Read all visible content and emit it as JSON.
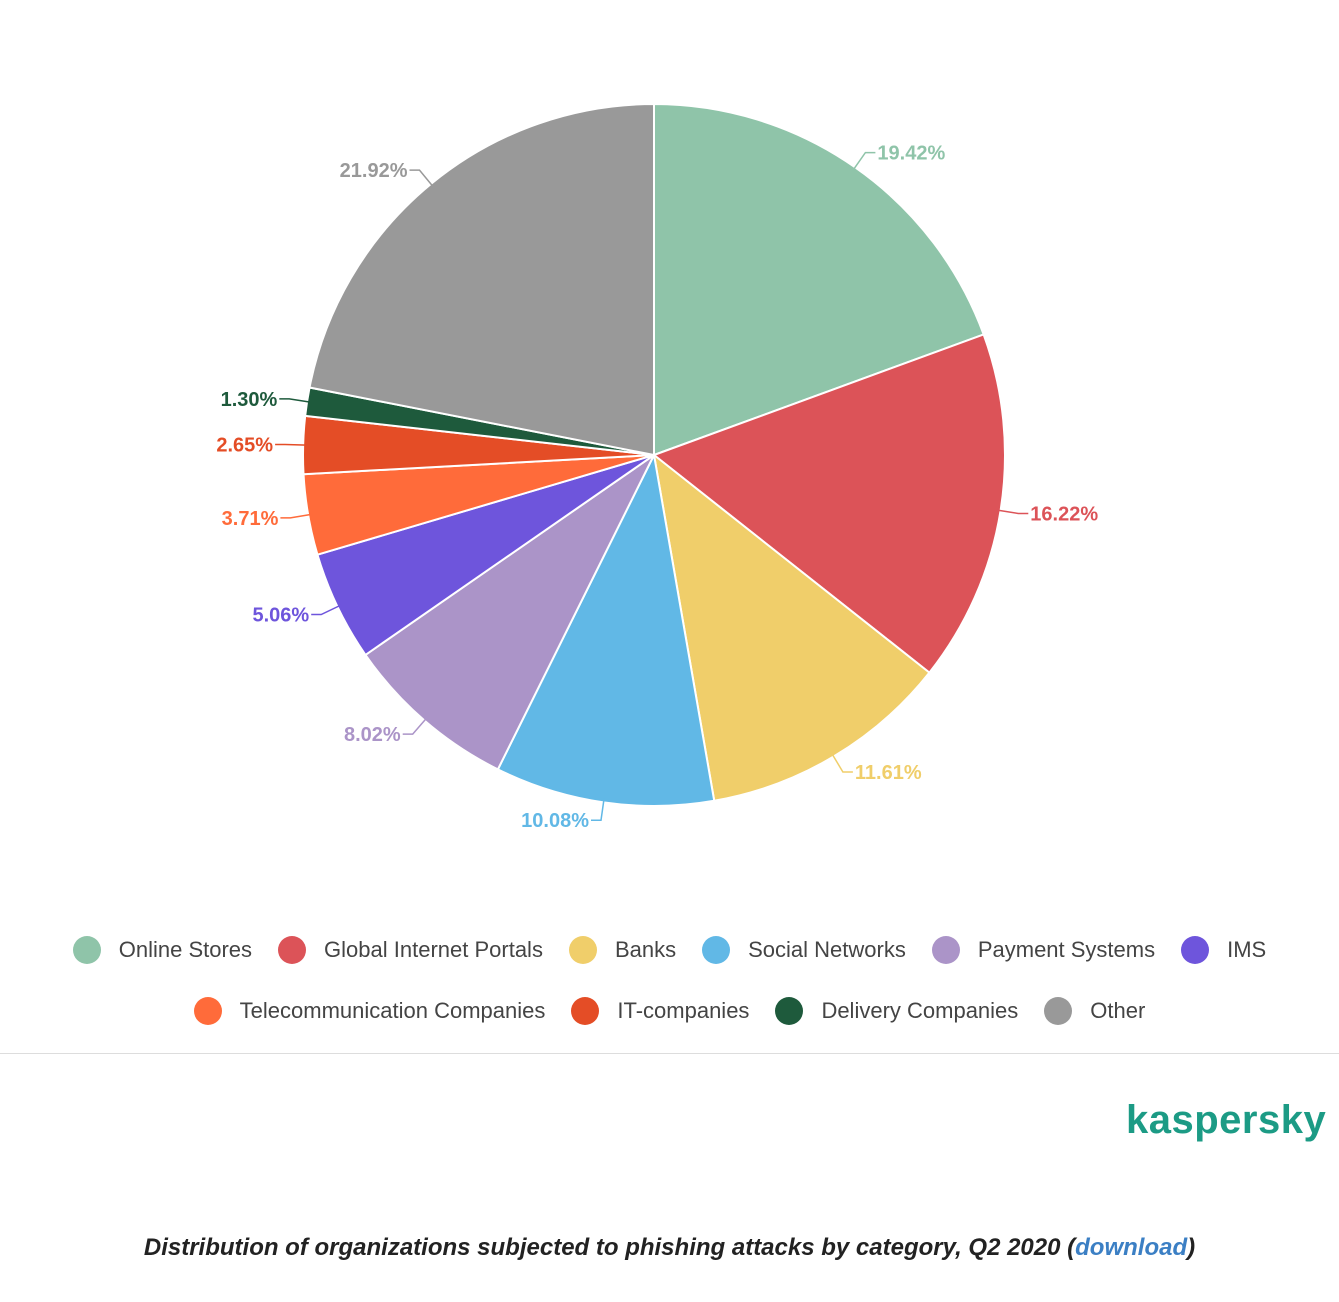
{
  "chart_data": {
    "type": "pie",
    "title": "",
    "categories": [
      "Online Stores",
      "Global Internet Portals",
      "Banks",
      "Social Networks",
      "Payment Systems",
      "IMS",
      "Telecommunication Companies",
      "IT-companies",
      "Delivery Companies",
      "Other"
    ],
    "values": [
      19.42,
      16.22,
      11.61,
      10.08,
      8.02,
      5.06,
      3.71,
      2.65,
      1.3,
      21.92
    ],
    "labels": [
      "19.42%",
      "16.22%",
      "11.61%",
      "10.08%",
      "8.02%",
      "5.06%",
      "3.71%",
      "2.65%",
      "1.30%",
      "21.92%"
    ],
    "colors": [
      "#8fc4a9",
      "#dc5358",
      "#f0ce6a",
      "#61b8e6",
      "#ab94c8",
      "#6e55dc",
      "#ff6b3a",
      "#e44d26",
      "#1e5a3c",
      "#999999"
    ],
    "legend_position": "bottom",
    "start_angle": "top, clockwise"
  },
  "legend": {
    "row1": [
      {
        "label": "Online Stores",
        "color": "#8fc4a9"
      },
      {
        "label": "Global Internet Portals",
        "color": "#dc5358"
      },
      {
        "label": "Banks",
        "color": "#f0ce6a"
      },
      {
        "label": "Social Networks",
        "color": "#61b8e6"
      },
      {
        "label": "Payment Systems",
        "color": "#ab94c8"
      },
      {
        "label": "IMS",
        "color": "#6e55dc"
      }
    ],
    "row2": [
      {
        "label": "Telecommunication Companies",
        "color": "#ff6b3a"
      },
      {
        "label": "IT-companies",
        "color": "#e44d26"
      },
      {
        "label": "Delivery Companies",
        "color": "#1e5a3c"
      },
      {
        "label": "Other",
        "color": "#999999"
      }
    ]
  },
  "brand": {
    "logo_text": "kaspersky",
    "color": "#1c9b85"
  },
  "caption": {
    "prefix": "Distribution of organizations subjected to phishing attacks by category, Q2 2020 (",
    "link": "download",
    "suffix": ")"
  }
}
